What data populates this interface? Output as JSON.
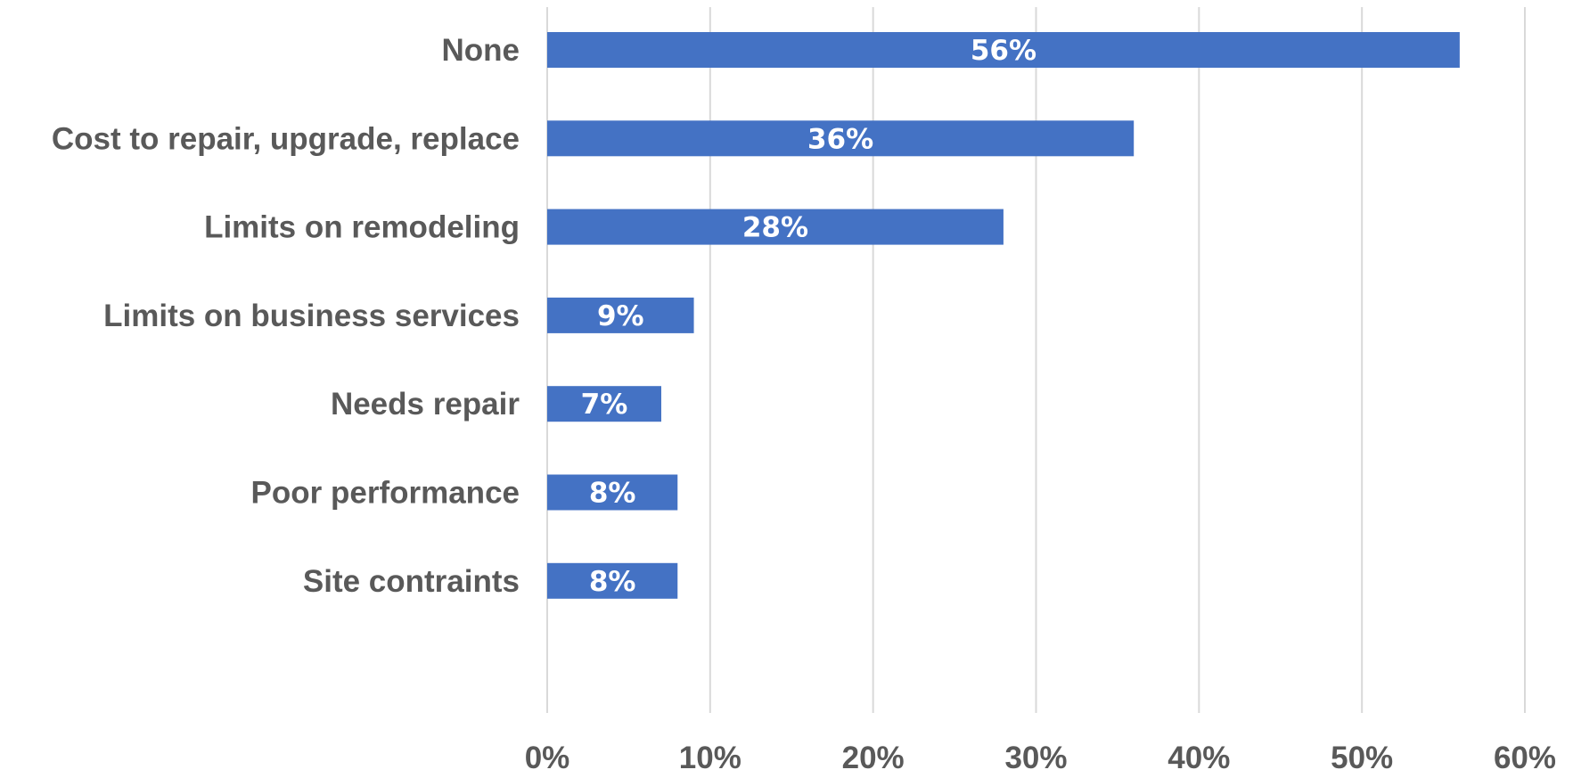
{
  "chart_data": {
    "type": "bar",
    "orientation": "horizontal",
    "categories": [
      "None",
      "Cost to repair, upgrade, replace",
      "Limits on remodeling",
      "Limits on business services",
      "Needs repair",
      "Poor performance",
      "Site contraints"
    ],
    "values": [
      56,
      36,
      28,
      9,
      7,
      8,
      8
    ],
    "data_labels": [
      "56%",
      "36%",
      "28%",
      "9%",
      "7%",
      "8%",
      "8%"
    ],
    "xlim": [
      0,
      60
    ],
    "x_ticks": [
      0,
      10,
      20,
      30,
      40,
      50,
      60
    ],
    "x_tick_labels": [
      "0%",
      "10%",
      "20%",
      "30%",
      "40%",
      "50%",
      "60%"
    ],
    "grid": "vertical",
    "legend": "none",
    "bar_color": "#4472c4",
    "label_color": "#595959",
    "data_label_color": "#ffffff",
    "grid_color": "#d9d9d9"
  }
}
